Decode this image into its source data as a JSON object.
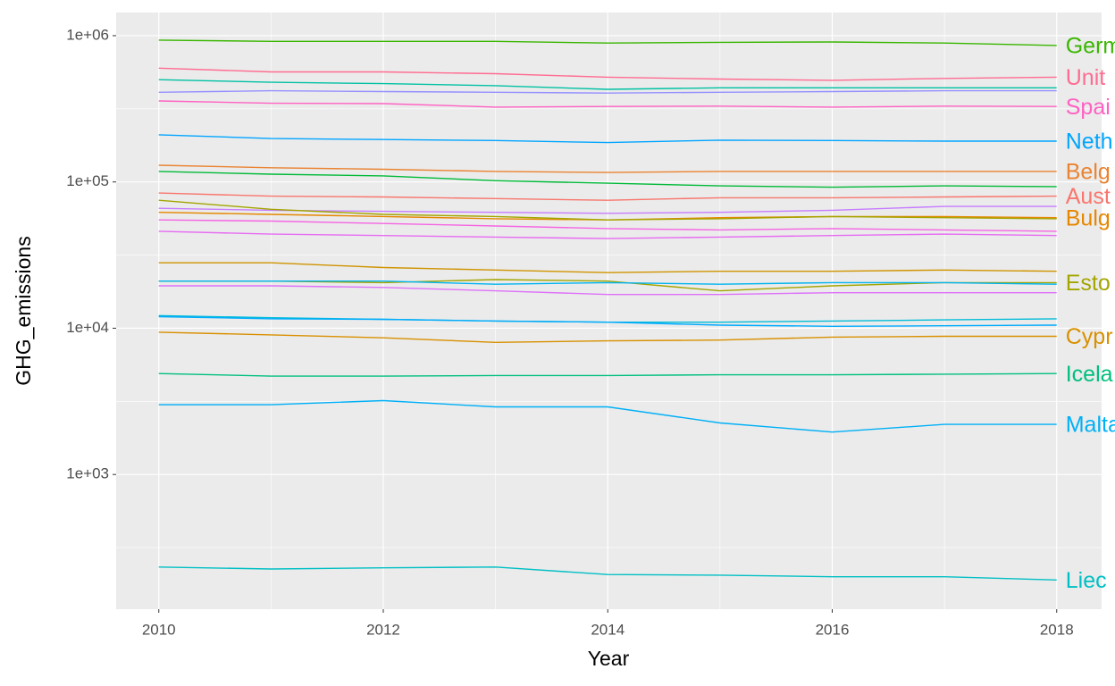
{
  "chart_data": {
    "type": "line",
    "x_label": "Year",
    "y_label": "GHG_emissions",
    "log_scale": true,
    "grid": true,
    "x": [
      2010,
      2011,
      2012,
      2013,
      2014,
      2015,
      2016,
      2017,
      2018
    ],
    "xlim": [
      2009.62,
      2018.4
    ],
    "xticks": [
      2010,
      2012,
      2014,
      2016,
      2018
    ],
    "ylim": [
      120,
      1440000
    ],
    "yticks": [
      {
        "value": 1000,
        "label": "1e+03"
      },
      {
        "value": 10000,
        "label": "1e+04"
      },
      {
        "value": 100000,
        "label": "1e+05"
      },
      {
        "value": 1000000,
        "label": "1e+06"
      }
    ],
    "series": [
      {
        "name": "Germ",
        "color": "#39B600",
        "values": [
          932000,
          915000,
          915000,
          915000,
          890000,
          900000,
          905000,
          890000,
          857000
        ]
      },
      {
        "name": "Unit",
        "color": "#FF6C91",
        "values": [
          600000,
          565000,
          565000,
          550000,
          520000,
          505000,
          495000,
          510000,
          520000
        ]
      },
      {
        "name": "Spai",
        "color": "#FF61C3",
        "values": [
          358000,
          345000,
          343000,
          325000,
          328000,
          330000,
          325000,
          330000,
          328000
        ]
      },
      {
        "name": "Neth",
        "color": "#00A5FF",
        "values": [
          210000,
          198000,
          195000,
          192000,
          186000,
          193000,
          192000,
          190000,
          190000
        ]
      },
      {
        "name": "Belg",
        "color": "#EA8331",
        "values": [
          130000,
          125000,
          122000,
          118000,
          116000,
          118000,
          118000,
          118000,
          118000
        ]
      },
      {
        "name": "Aust",
        "color": "#F8766D",
        "values": [
          84000,
          80000,
          79000,
          77000,
          75000,
          78000,
          78000,
          79000,
          80000
        ]
      },
      {
        "name": "Bulg",
        "color": "#E58700",
        "values": [
          62000,
          60000,
          58000,
          56000,
          55000,
          57000,
          58000,
          58000,
          57000
        ]
      },
      {
        "name": "Esto",
        "color": "#A3A500",
        "values": [
          21000,
          21000,
          20500,
          21500,
          21000,
          18000,
          19500,
          20500,
          20500
        ]
      },
      {
        "name": "Cypr",
        "color": "#D89000",
        "values": [
          9400,
          9000,
          8600,
          8000,
          8200,
          8300,
          8700,
          8800,
          8800
        ]
      },
      {
        "name": "Icela",
        "color": "#00BF7D",
        "values": [
          4900,
          4700,
          4700,
          4750,
          4750,
          4800,
          4800,
          4850,
          4900
        ]
      },
      {
        "name": "Malta",
        "color": "#00B0F6",
        "values": [
          3000,
          3000,
          3200,
          2900,
          2900,
          2250,
          1950,
          2200,
          2200
        ]
      },
      {
        "name": "Liec",
        "color": "#00BFC4",
        "values": [
          233,
          226,
          230,
          233,
          207,
          205,
          200,
          200,
          190
        ]
      },
      {
        "color": "#00C1A3",
        "values": [
          500000,
          480000,
          470000,
          455000,
          430000,
          440000,
          440000,
          440000,
          440000
        ]
      },
      {
        "color": "#9590FF",
        "values": [
          410000,
          420000,
          415000,
          410000,
          405000,
          410000,
          415000,
          420000,
          420000
        ]
      },
      {
        "color": "#00BA38",
        "values": [
          118000,
          113000,
          110000,
          102000,
          98000,
          94000,
          92000,
          94000,
          93000
        ]
      },
      {
        "color": "#C77CFF",
        "values": [
          66000,
          64000,
          63000,
          62000,
          61000,
          62000,
          64000,
          68000,
          68000
        ]
      },
      {
        "color": "#F564E3",
        "values": [
          55000,
          54000,
          52000,
          50000,
          48000,
          47000,
          48000,
          47000,
          46000
        ]
      },
      {
        "color": "#E76BF3",
        "values": [
          46000,
          44000,
          43000,
          42000,
          41000,
          42000,
          43000,
          44000,
          43000
        ]
      },
      {
        "color": "#A3A500",
        "values": [
          75000,
          65000,
          60000,
          58000,
          55000,
          56000,
          58000,
          57000,
          56000
        ]
      },
      {
        "color": "#CF9400",
        "values": [
          28000,
          28000,
          26000,
          25000,
          24000,
          24500,
          24500,
          25000,
          24500
        ]
      },
      {
        "color": "#00B4EF",
        "values": [
          21000,
          21000,
          21000,
          20000,
          20500,
          20000,
          20500,
          20500,
          20000
        ]
      },
      {
        "color": "#DE71F9",
        "values": [
          19500,
          19500,
          19000,
          18000,
          17000,
          17000,
          17500,
          17500,
          17500
        ]
      },
      {
        "color": "#00BCD8",
        "values": [
          12200,
          11800,
          11500,
          11200,
          11000,
          11000,
          11200,
          11400,
          11600
        ]
      },
      {
        "color": "#00ABFD",
        "values": [
          12000,
          11600,
          11500,
          11200,
          11000,
          10500,
          10300,
          10400,
          10500
        ]
      }
    ]
  }
}
